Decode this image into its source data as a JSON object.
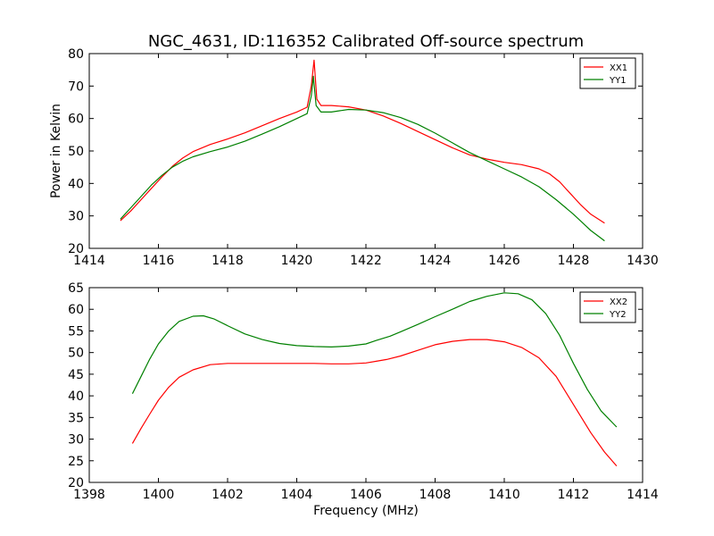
{
  "figure_title": "NGC_4631, ID:116352 Calibrated Off-source spectrum",
  "chart_data": [
    {
      "type": "line",
      "title": "NGC_4631, ID:116352 Calibrated Off-source spectrum",
      "xlabel": "",
      "ylabel": "Power in Kelvin",
      "xlim": [
        1414,
        1430
      ],
      "ylim": [
        20,
        80
      ],
      "xticks": [
        1414,
        1416,
        1418,
        1420,
        1422,
        1424,
        1426,
        1428,
        1430
      ],
      "yticks": [
        20,
        30,
        40,
        50,
        60,
        70,
        80
      ],
      "grid": false,
      "legend_position": "top-right",
      "series": [
        {
          "name": "XX1",
          "color": "#ff0000",
          "x": [
            1414.9,
            1415.2,
            1415.5,
            1415.8,
            1416.1,
            1416.4,
            1416.7,
            1417.0,
            1417.5,
            1418.0,
            1418.5,
            1419.0,
            1419.5,
            1420.0,
            1420.3,
            1420.42,
            1420.5,
            1420.58,
            1420.7,
            1421.0,
            1421.5,
            1422.0,
            1422.5,
            1423.0,
            1423.5,
            1424.0,
            1424.5,
            1425.0,
            1425.5,
            1426.0,
            1426.5,
            1427.0,
            1427.3,
            1427.6,
            1427.9,
            1428.2,
            1428.5,
            1428.9
          ],
          "values": [
            28.5,
            31.5,
            35.0,
            38.5,
            42.0,
            45.2,
            47.8,
            49.8,
            52.0,
            53.7,
            55.6,
            57.8,
            60.0,
            62.0,
            63.5,
            70.0,
            78.0,
            66.0,
            64.0,
            64.0,
            63.6,
            62.6,
            60.8,
            58.5,
            56.0,
            53.5,
            51.0,
            48.8,
            47.5,
            46.5,
            45.8,
            44.5,
            43.0,
            40.5,
            37.0,
            33.5,
            30.5,
            27.8
          ]
        },
        {
          "name": "YY1",
          "color": "#008000",
          "x": [
            1414.9,
            1415.2,
            1415.5,
            1415.8,
            1416.1,
            1416.4,
            1416.7,
            1417.0,
            1417.5,
            1418.0,
            1418.5,
            1419.0,
            1419.5,
            1420.0,
            1420.3,
            1420.42,
            1420.48,
            1420.56,
            1420.7,
            1421.0,
            1421.5,
            1422.0,
            1422.5,
            1423.0,
            1423.5,
            1424.0,
            1424.5,
            1425.0,
            1425.5,
            1426.0,
            1426.5,
            1427.0,
            1427.5,
            1428.0,
            1428.5,
            1428.9
          ],
          "values": [
            29.0,
            32.5,
            36.0,
            39.5,
            42.5,
            45.0,
            46.8,
            48.2,
            49.8,
            51.2,
            53.0,
            55.2,
            57.5,
            60.0,
            61.5,
            67.0,
            73.0,
            64.0,
            62.0,
            62.0,
            62.8,
            62.6,
            61.8,
            60.3,
            58.2,
            55.5,
            52.5,
            49.5,
            47.0,
            44.5,
            42.0,
            39.0,
            35.0,
            30.5,
            25.5,
            22.3
          ]
        }
      ]
    },
    {
      "type": "line",
      "title": "",
      "xlabel": "Frequency (MHz)",
      "ylabel": "",
      "xlim": [
        1398,
        1414
      ],
      "ylim": [
        20,
        65
      ],
      "xticks": [
        1398,
        1400,
        1402,
        1404,
        1406,
        1408,
        1410,
        1412,
        1414
      ],
      "yticks": [
        20,
        25,
        30,
        35,
        40,
        45,
        50,
        55,
        60,
        65
      ],
      "grid": false,
      "legend_position": "top-right",
      "series": [
        {
          "name": "XX2",
          "color": "#ff0000",
          "x": [
            1399.25,
            1399.5,
            1399.75,
            1400.0,
            1400.3,
            1400.6,
            1401.0,
            1401.5,
            1402.0,
            1402.5,
            1403.0,
            1403.5,
            1404.0,
            1404.5,
            1405.0,
            1405.5,
            1406.0,
            1406.3,
            1406.6,
            1407.0,
            1407.5,
            1408.0,
            1408.5,
            1409.0,
            1409.5,
            1410.0,
            1410.5,
            1411.0,
            1411.5,
            1412.0,
            1412.5,
            1412.9,
            1413.25
          ],
          "values": [
            29.0,
            32.5,
            35.8,
            39.0,
            42.0,
            44.3,
            46.0,
            47.2,
            47.5,
            47.5,
            47.5,
            47.5,
            47.5,
            47.5,
            47.4,
            47.4,
            47.6,
            48.0,
            48.4,
            49.2,
            50.5,
            51.8,
            52.6,
            53.0,
            53.0,
            52.5,
            51.2,
            48.8,
            44.5,
            38.0,
            31.5,
            27.0,
            23.8
          ]
        },
        {
          "name": "YY2",
          "color": "#008000",
          "x": [
            1399.25,
            1399.5,
            1399.75,
            1400.0,
            1400.3,
            1400.6,
            1401.0,
            1401.3,
            1401.6,
            1402.0,
            1402.5,
            1403.0,
            1403.5,
            1404.0,
            1404.5,
            1405.0,
            1405.5,
            1406.0,
            1406.3,
            1406.7,
            1407.0,
            1407.5,
            1408.0,
            1408.5,
            1409.0,
            1409.5,
            1410.0,
            1410.4,
            1410.8,
            1411.2,
            1411.6,
            1412.0,
            1412.4,
            1412.8,
            1413.25
          ],
          "values": [
            40.5,
            44.5,
            48.5,
            52.0,
            55.0,
            57.2,
            58.4,
            58.5,
            57.8,
            56.2,
            54.3,
            53.0,
            52.1,
            51.6,
            51.4,
            51.3,
            51.5,
            52.0,
            52.8,
            53.8,
            54.8,
            56.5,
            58.3,
            60.0,
            61.8,
            63.0,
            63.8,
            63.6,
            62.2,
            59.0,
            54.0,
            47.5,
            41.5,
            36.5,
            32.8
          ]
        }
      ]
    }
  ]
}
